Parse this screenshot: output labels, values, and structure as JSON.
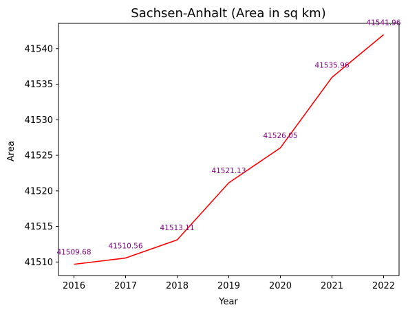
{
  "chart_data": {
    "type": "line",
    "title": "Sachsen-Anhalt (Area in sq km)",
    "xlabel": "Year",
    "ylabel": "Area",
    "x": [
      2016,
      2017,
      2018,
      2019,
      2020,
      2021,
      2022
    ],
    "series": [
      {
        "values": [
          41509.68,
          41510.56,
          41513.11,
          41521.13,
          41526.05,
          41535.96,
          41541.96
        ],
        "labels": [
          "41509.68",
          "41510.56",
          "41513.11",
          "41521.13",
          "41526.05",
          "41535.96",
          "41541.96"
        ]
      }
    ],
    "xlim": [
      2015.7,
      2022.3
    ],
    "ylim": [
      41508.1,
      41543.55
    ],
    "yticks": [
      41510,
      41515,
      41520,
      41525,
      41530,
      41535,
      41540
    ],
    "grid": false,
    "legend": "none",
    "colors": {
      "line": "#ff0000",
      "labels": "#800080",
      "axes": "#000000"
    }
  }
}
